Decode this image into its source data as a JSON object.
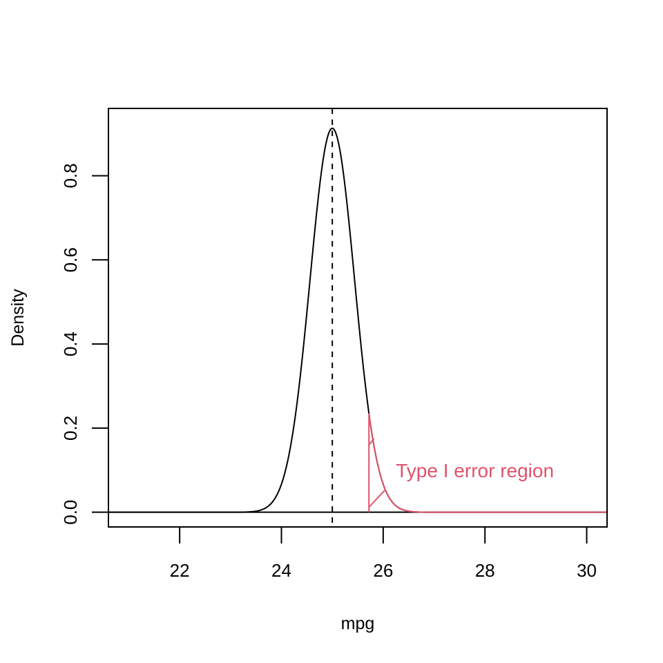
{
  "chart_data": {
    "type": "line",
    "title": "",
    "xlabel": "mpg",
    "ylabel": "Density",
    "xlim": [
      20.6,
      30.4
    ],
    "ylim": [
      -0.035,
      0.96
    ],
    "x_ticks": [
      22,
      24,
      26,
      28,
      30
    ],
    "x_tick_labels": [
      "22",
      "24",
      "26",
      "28",
      "30"
    ],
    "y_ticks": [
      0.0,
      0.2,
      0.4,
      0.6,
      0.8
    ],
    "y_tick_labels": [
      "0.0",
      "0.2",
      "0.4",
      "0.6",
      "0.8"
    ],
    "grid": false,
    "density": {
      "mean": 25,
      "sd": 0.437,
      "x_range": [
        20.6,
        30.4
      ],
      "color": "#000000"
    },
    "mean_line": {
      "x": 25,
      "style": "dashed",
      "color": "#000000"
    },
    "baseline": {
      "y": 0
    },
    "rejection_region": {
      "x_start": 25.72,
      "x_end": 30.4,
      "color": "#DF536B",
      "hatched": true
    },
    "annotation": {
      "text": "Type I error region",
      "x": 26.25,
      "y": 0.1,
      "color": "#DF536B"
    }
  }
}
